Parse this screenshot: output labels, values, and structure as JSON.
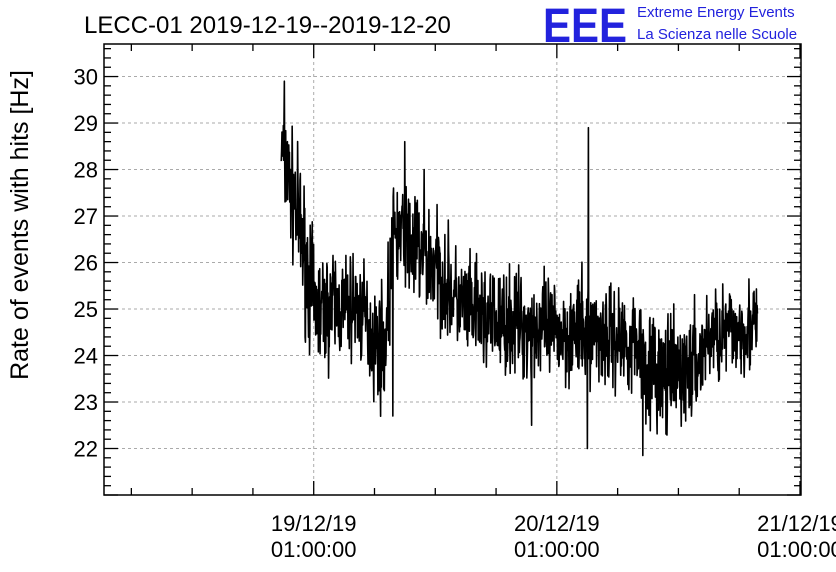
{
  "colors": {
    "brand": "#2222dd",
    "series": "#000000",
    "grid": "#aaaaaa"
  },
  "header": {
    "logo_text": "EEE",
    "org_line1": "Extreme Energy Events",
    "org_line2": "La Scienza nelle Scuole"
  },
  "chart_data": {
    "type": "line",
    "title": "LECC-01 2019-12-19--2019-12-20",
    "ylabel": "Rate of events with hits [Hz]",
    "xlabel": "",
    "ylim": [
      21,
      30.7
    ],
    "yticks": [
      22,
      23,
      24,
      25,
      26,
      27,
      28,
      29,
      30
    ],
    "xlim_hours": [
      -20.7,
      48.1
    ],
    "x_units": "hours since 19/12/19 01:00:00",
    "xticks": [
      {
        "at": 0,
        "date": "19/12/19",
        "time": "01:00:00"
      },
      {
        "at": 24,
        "date": "20/12/19",
        "time": "01:00:00"
      },
      {
        "at": 48,
        "date": "21/12/19",
        "time": "01:00:00"
      }
    ],
    "grid": true,
    "series": [
      {
        "x": [
          -3.2,
          -2.5,
          -1.8,
          -1.0,
          0.0,
          1.0,
          2.0,
          3.0,
          4.0,
          5.0,
          6.0,
          7.0,
          8.0,
          9.0,
          10.0,
          11.0,
          12.0,
          13.0,
          14.0,
          15.0,
          16.0,
          17.0,
          18.0,
          19.0,
          20.0,
          21.0,
          22.0,
          23.0,
          24.0,
          25.0,
          26.0,
          27.0,
          28.0,
          29.0,
          30.0,
          31.0,
          32.0,
          33.0,
          34.0,
          35.0,
          36.0,
          37.0,
          38.0,
          39.0,
          40.0,
          41.0,
          42.0,
          43.0,
          43.8
        ],
        "y": [
          28.5,
          27.8,
          27.2,
          26.3,
          25.1,
          24.9,
          25.1,
          25.0,
          25.1,
          24.8,
          24.3,
          24.2,
          26.7,
          26.5,
          26.3,
          26.1,
          25.9,
          25.6,
          25.2,
          25.0,
          24.9,
          24.8,
          24.7,
          24.7,
          24.7,
          24.6,
          24.6,
          24.5,
          24.5,
          24.5,
          24.5,
          24.5,
          24.5,
          24.4,
          24.4,
          24.3,
          24.3,
          23.8,
          23.6,
          23.5,
          23.6,
          23.7,
          23.9,
          24.4,
          24.5,
          24.5,
          24.6,
          24.6,
          24.6
        ],
        "noise": [
          0.55,
          0.6,
          0.65,
          0.7,
          0.65,
          0.6,
          0.6,
          0.55,
          0.55,
          0.55,
          0.6,
          0.6,
          0.6,
          0.6,
          0.6,
          0.6,
          0.6,
          0.55,
          0.55,
          0.55,
          0.55,
          0.55,
          0.55,
          0.55,
          0.55,
          0.55,
          0.55,
          0.55,
          0.55,
          0.55,
          0.55,
          0.55,
          0.55,
          0.55,
          0.55,
          0.55,
          0.55,
          0.6,
          0.6,
          0.6,
          0.6,
          0.6,
          0.55,
          0.5,
          0.5,
          0.5,
          0.5,
          0.5,
          0.5
        ],
        "spikes": [
          {
            "x": -2.9,
            "y": 29.9
          },
          {
            "x": -2.6,
            "y": 28.6
          },
          {
            "x": 9.0,
            "y": 28.6
          },
          {
            "x": 10.9,
            "y": 28.0
          },
          {
            "x": 27.1,
            "y": 28.9
          },
          {
            "x": 27.0,
            "y": 22.0
          },
          {
            "x": 32.5,
            "y": 21.85
          },
          {
            "x": 21.5,
            "y": 22.5
          },
          {
            "x": 7.8,
            "y": 22.7
          }
        ]
      }
    ]
  }
}
